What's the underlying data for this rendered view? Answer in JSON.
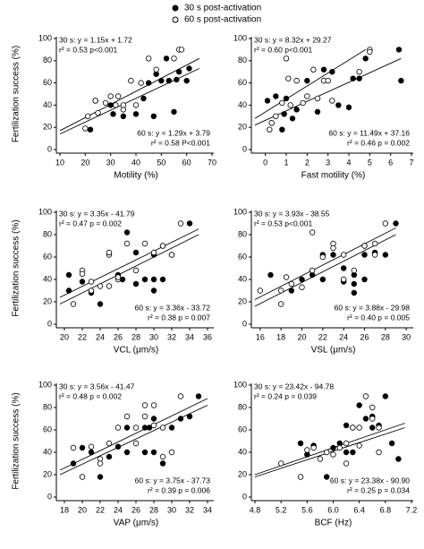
{
  "legend": [
    {
      "name": "30 s post-activation",
      "marker": "filled"
    },
    {
      "name": "60 s post-activation",
      "marker": "open"
    }
  ],
  "chart_data": [
    {
      "type": "scatter",
      "xlabel": "Motility (%)",
      "ylabel": "Fertilization success (%)",
      "xlim": [
        10,
        70
      ],
      "xticks": [
        10,
        20,
        30,
        40,
        50,
        60,
        70
      ],
      "ylim": [
        0,
        100
      ],
      "yticks": [
        0,
        20,
        40,
        60,
        80,
        100
      ],
      "series": [
        {
          "marker": "filled",
          "x": [
            22,
            24,
            30,
            31,
            35,
            40,
            43,
            45,
            47,
            48,
            50,
            52,
            53,
            55,
            56,
            57,
            60,
            61
          ],
          "values": [
            18,
            44,
            40,
            32,
            30,
            32,
            46,
            60,
            30,
            68,
            62,
            82,
            62,
            34,
            63,
            70,
            62,
            73
          ]
        },
        {
          "marker": "open",
          "x": [
            20,
            21,
            24,
            25,
            28,
            30,
            32,
            33,
            35,
            35,
            38,
            40,
            42,
            45,
            48,
            55,
            57,
            58
          ],
          "values": [
            19,
            30,
            44,
            33,
            42,
            48,
            40,
            48,
            36,
            40,
            62,
            40,
            60,
            82,
            72,
            82,
            90,
            90
          ]
        }
      ],
      "fit_lines": [
        {
          "x": [
            10,
            65
          ],
          "y": [
            17,
            82
          ]
        },
        {
          "x": [
            10,
            65
          ],
          "y": [
            14,
            73
          ]
        }
      ],
      "annotations": [
        {
          "corner": "top-left",
          "lines": [
            "30 s: y = 1.15x + 1.72",
            "r² = 0.53  p<0.001"
          ]
        },
        {
          "corner": "bottom-right",
          "lines": [
            "60 s: y = 1.29x + 3.79",
            "r² = 0.58  P<0.001"
          ]
        }
      ]
    },
    {
      "type": "scatter",
      "xlabel": "Fast motility (%)",
      "xlim": [
        -0.5,
        7
      ],
      "xticks": [
        0,
        1,
        2,
        3,
        4,
        5,
        6,
        7
      ],
      "ylim": [
        0,
        100
      ],
      "yticks": [
        0,
        20,
        40,
        60,
        80,
        100
      ],
      "series": [
        {
          "marker": "filled",
          "x": [
            0.1,
            0.5,
            0.8,
            0.9,
            1.0,
            1.3,
            1.5,
            2,
            2.5,
            2.8,
            3.2,
            3.5,
            4,
            4.2,
            4.5,
            4.8,
            6.4,
            6.5
          ],
          "values": [
            44,
            48,
            18,
            32,
            46,
            28,
            36,
            62,
            34,
            72,
            70,
            40,
            38,
            64,
            64,
            82,
            90,
            62
          ]
        },
        {
          "marker": "open",
          "x": [
            0.2,
            0.3,
            0.5,
            0.8,
            1,
            1.1,
            1.2,
            1.5,
            1.8,
            2,
            2.3,
            2.5,
            2.8,
            3,
            3.2,
            4.5,
            5,
            5
          ],
          "values": [
            18,
            24,
            30,
            42,
            82,
            64,
            40,
            62,
            42,
            48,
            72,
            46,
            62,
            62,
            44,
            70,
            90,
            88
          ]
        }
      ],
      "fit_lines": [
        {
          "x": [
            -0.5,
            4.8
          ],
          "y": [
            28,
            90
          ]
        },
        {
          "x": [
            -0.5,
            6.5
          ],
          "y": [
            22,
            82
          ]
        }
      ],
      "annotations": [
        {
          "corner": "top-left",
          "lines": [
            "30 s: y = 8.32x + 29.27",
            "r² = 0.60  p<0.001"
          ]
        },
        {
          "corner": "bottom-right",
          "lines": [
            "60 s: y = 11.49x + 37.16",
            "r² = 0.46  p = 0.002"
          ]
        }
      ]
    },
    {
      "type": "scatter",
      "xlabel": "VCL (μm/s)",
      "ylabel": "Fertilization success (%)",
      "xlim": [
        19.5,
        36.5
      ],
      "xticks": [
        20,
        22,
        24,
        26,
        28,
        30,
        32,
        34,
        36
      ],
      "ylim": [
        0,
        100
      ],
      "yticks": [
        0,
        20,
        40,
        60,
        80,
        100
      ],
      "series": [
        {
          "marker": "filled",
          "x": [
            20.5,
            20.5,
            22,
            23,
            24,
            26,
            26.5,
            27,
            28,
            28,
            29,
            30,
            30,
            30,
            31,
            31,
            32,
            34
          ],
          "values": [
            44,
            30,
            38,
            28,
            18,
            44,
            40,
            82,
            36,
            64,
            40,
            62,
            30,
            40,
            70,
            40,
            62,
            90
          ]
        },
        {
          "marker": "open",
          "x": [
            21,
            22,
            22,
            23,
            23,
            24,
            25,
            25,
            25,
            26,
            26,
            27,
            28,
            29,
            30,
            31,
            32,
            33
          ],
          "values": [
            18,
            48,
            45,
            30,
            38,
            34,
            62,
            34,
            64,
            40,
            42,
            72,
            48,
            72,
            64,
            70,
            62,
            90
          ]
        }
      ],
      "fit_lines": [
        {
          "x": [
            19.5,
            35
          ],
          "y": [
            24,
            85
          ]
        },
        {
          "x": [
            19.5,
            35
          ],
          "y": [
            18,
            80
          ]
        }
      ],
      "annotations": [
        {
          "corner": "top-left",
          "lines": [
            "30 s: y = 3.35x - 41.79",
            "r² = 0.47  p = 0.002"
          ]
        },
        {
          "corner": "bottom-right",
          "lines": [
            "60 s: y = 3.36x - 33.72",
            "r² = 0.38  p = 0.007"
          ]
        }
      ]
    },
    {
      "type": "scatter",
      "xlabel": "VSL (μm/s)",
      "xlim": [
        15.5,
        30.5
      ],
      "xticks": [
        16,
        18,
        20,
        22,
        24,
        26,
        28,
        30
      ],
      "ylim": [
        0,
        100
      ],
      "yticks": [
        0,
        20,
        40,
        60,
        80,
        100
      ],
      "series": [
        {
          "marker": "filled",
          "x": [
            17,
            19,
            20,
            21,
            22,
            22,
            23,
            24,
            24,
            25,
            25,
            25,
            26,
            26,
            26,
            27,
            28,
            29
          ],
          "values": [
            44,
            30,
            40,
            44,
            40,
            62,
            62,
            50,
            38,
            36,
            28,
            44,
            70,
            62,
            40,
            64,
            62,
            90
          ]
        },
        {
          "marker": "open",
          "x": [
            16,
            18,
            18,
            18.5,
            19,
            20,
            21,
            21,
            22,
            23,
            23,
            24,
            24,
            25,
            26,
            27,
            27,
            28
          ],
          "values": [
            30,
            30,
            18,
            42,
            36,
            33,
            48,
            82,
            60,
            72,
            68,
            62,
            40,
            48,
            70,
            62,
            72,
            90
          ]
        }
      ],
      "fit_lines": [
        {
          "x": [
            15.5,
            29
          ],
          "y": [
            22,
            86
          ]
        },
        {
          "x": [
            15.5,
            29
          ],
          "y": [
            16,
            80
          ]
        }
      ],
      "annotations": [
        {
          "corner": "top-left",
          "lines": [
            "30 s: y = 3.93x - 38.55",
            "r² = 0.53  p<0.001"
          ]
        },
        {
          "corner": "bottom-right",
          "lines": [
            "60 s: y = 3.88x - 29.98",
            "r² = 0.40  p = 0.005"
          ]
        }
      ]
    },
    {
      "type": "scatter",
      "xlabel": "VAP (μm/s)",
      "ylabel": "Fertilization success (%)",
      "xlim": [
        17.5,
        34.5
      ],
      "xticks": [
        18,
        20,
        22,
        24,
        26,
        28,
        30,
        32,
        34
      ],
      "ylim": [
        0,
        100
      ],
      "yticks": [
        0,
        20,
        40,
        60,
        80,
        100
      ],
      "series": [
        {
          "marker": "filled",
          "x": [
            19,
            20,
            21,
            22,
            23,
            24,
            25,
            25,
            27,
            27,
            27.5,
            28,
            28,
            29,
            30,
            31,
            32,
            33
          ],
          "values": [
            30,
            44,
            40,
            18,
            36,
            45,
            40,
            62,
            40,
            62,
            62,
            40,
            70,
            30,
            62,
            70,
            72,
            90
          ]
        },
        {
          "marker": "open",
          "x": [
            19,
            20,
            21,
            22,
            22,
            23,
            24,
            25,
            26,
            26,
            27,
            27,
            28,
            28,
            29,
            29,
            30,
            31
          ],
          "values": [
            44,
            18,
            45,
            34,
            30,
            48,
            62,
            72,
            62,
            48,
            82,
            72,
            64,
            82,
            62,
            36,
            40,
            90
          ]
        }
      ],
      "fit_lines": [
        {
          "x": [
            17.5,
            34
          ],
          "y": [
            24,
            88
          ]
        },
        {
          "x": [
            17.5,
            34
          ],
          "y": [
            20,
            82
          ]
        }
      ],
      "annotations": [
        {
          "corner": "top-left",
          "lines": [
            "30 s: y = 3.56x - 41.47",
            "r² = 0.48  p = 0.002"
          ]
        },
        {
          "corner": "bottom-right",
          "lines": [
            "60 s: y = 3.75x - 37.73",
            "r² = 0.39  p = 0.006"
          ]
        }
      ]
    },
    {
      "type": "scatter",
      "xlabel": "BCF (Hz)",
      "xlim": [
        4.8,
        7.2
      ],
      "xticks": [
        4.8,
        5.2,
        5.6,
        {
          "value": 6,
          "label": "6.0"
        },
        6.4,
        6.8,
        7.2
      ],
      "ylim": [
        0,
        100
      ],
      "yticks": [
        0,
        20,
        40,
        60,
        80,
        100
      ],
      "series": [
        {
          "marker": "filled",
          "x": [
            5.5,
            5.6,
            5.7,
            5.9,
            6.0,
            6.1,
            6.2,
            6.2,
            6.3,
            6.3,
            6.4,
            6.5,
            6.6,
            6.6,
            6.7,
            6.8,
            6.9,
            7.0
          ],
          "values": [
            48,
            38,
            46,
            18,
            44,
            48,
            40,
            64,
            62,
            40,
            82,
            70,
            72,
            62,
            64,
            90,
            48,
            34
          ]
        },
        {
          "marker": "open",
          "x": [
            5.2,
            5.5,
            5.6,
            5.7,
            5.8,
            5.9,
            6.0,
            6.1,
            6.2,
            6.2,
            6.3,
            6.4,
            6.4,
            6.5,
            6.6,
            6.6,
            6.7,
            6.7
          ],
          "values": [
            30,
            18,
            42,
            44,
            34,
            40,
            38,
            44,
            30,
            48,
            62,
            62,
            46,
            90,
            70,
            80,
            62,
            40
          ]
        }
      ],
      "fit_lines": [
        {
          "x": [
            4.8,
            7.1
          ],
          "y": [
            20,
            66
          ]
        },
        {
          "x": [
            4.8,
            7.1
          ],
          "y": [
            18,
            62
          ]
        }
      ],
      "annotations": [
        {
          "corner": "top-left",
          "lines": [
            "30 s: y = 23.42x - 94.78",
            "r² = 0.24  p = 0.039"
          ]
        },
        {
          "corner": "bottom-right",
          "lines": [
            "60 s: y = 23.38x - 90.90",
            "r² = 0.25  p = 0.034"
          ]
        }
      ]
    }
  ]
}
